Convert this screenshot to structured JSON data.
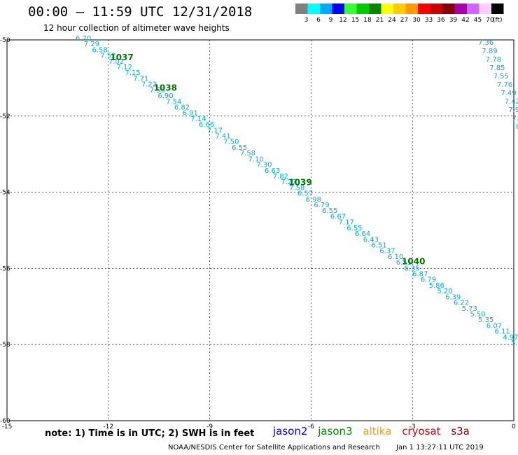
{
  "title": "00:00 – 11:59 UTC 12/31/2018",
  "subtitle": "12 hour collection of altimeter wave heights",
  "legend": {
    "unit": "(ft)",
    "bins": [
      {
        "color": "#808080",
        "label": "3"
      },
      {
        "color": "#00ffff",
        "label": "6"
      },
      {
        "color": "#00aaff",
        "label": "9"
      },
      {
        "color": "#0000ff",
        "label": "12"
      },
      {
        "color": "#33ff33",
        "label": "15"
      },
      {
        "color": "#00cc00",
        "label": "18"
      },
      {
        "color": "#008800",
        "label": "21"
      },
      {
        "color": "#ffff00",
        "label": "24"
      },
      {
        "color": "#ffcc00",
        "label": "27"
      },
      {
        "color": "#ff9900",
        "label": "30"
      },
      {
        "color": "#ff0000",
        "label": "33"
      },
      {
        "color": "#cc0000",
        "label": "36"
      },
      {
        "color": "#880000",
        "label": "39"
      },
      {
        "color": "#aa00aa",
        "label": "42"
      },
      {
        "color": "#cc66ff",
        "label": "45"
      },
      {
        "color": "#ffccff",
        "label": "70"
      },
      {
        "color": "#000000",
        "label": ""
      }
    ]
  },
  "axes": {
    "lat_ticks": [
      "-50",
      "-52",
      "-54",
      "-56",
      "-58",
      "-60"
    ],
    "lon_ticks": [
      "-15",
      "-12",
      "-9",
      "-6",
      "-3",
      "0"
    ],
    "lat_range": [
      -60,
      -50
    ],
    "lon_range": [
      -15,
      0
    ]
  },
  "track_color": "#00aadd",
  "pass_color": "#007700",
  "track_values": [
    "6.70",
    "7.29",
    "6.58",
    "7.52",
    "7.02",
    "7.12",
    "7.15",
    "7.71",
    "7.22",
    "7.56",
    "6.90",
    "7.54",
    "6.82",
    "6.91",
    "7.14",
    "6.66",
    "7.17",
    "7.41",
    "7.50",
    "6.55",
    "7.58",
    "7.10",
    "7.30",
    "6.63",
    "7.82",
    "7.27",
    "7.58",
    "6.57",
    "6.98",
    "6.79",
    "6.55",
    "6.67",
    "7.17",
    "6.55",
    "6.64",
    "6.43",
    "6.51",
    "6.37",
    "6.10",
    "6.55",
    "6.35",
    "6.87",
    "6.79",
    "5.86",
    "5.20",
    "6.39",
    "6.22",
    "5.73",
    "5.50",
    "5.35",
    "6.07",
    "6.11",
    "4.97",
    "5.00"
  ],
  "right_track_values": [
    "7.36",
    "7.89",
    "7.78",
    "7.85",
    "7.55",
    "7.76",
    "7.49",
    "7.42",
    "7.9",
    "7.",
    "6"
  ],
  "pass_labels": [
    "1037",
    "1038",
    "1039",
    "1040"
  ],
  "note": "note: 1) Time is in UTC; 2) SWH is in feet",
  "satellites": [
    {
      "name": "jason2",
      "color": "#0000cc"
    },
    {
      "name": "jason3",
      "color": "#008800"
    },
    {
      "name": "altika",
      "color": "#ff9900"
    },
    {
      "name": "cryosat",
      "color": "#cc0000"
    },
    {
      "name": "s3a",
      "color": "#880000"
    }
  ],
  "credit": {
    "org": "NOAA/NESDIS Center for Satellite Applications and Research",
    "timestamp": "Jan  1 13:27:11 UTC 2019"
  }
}
